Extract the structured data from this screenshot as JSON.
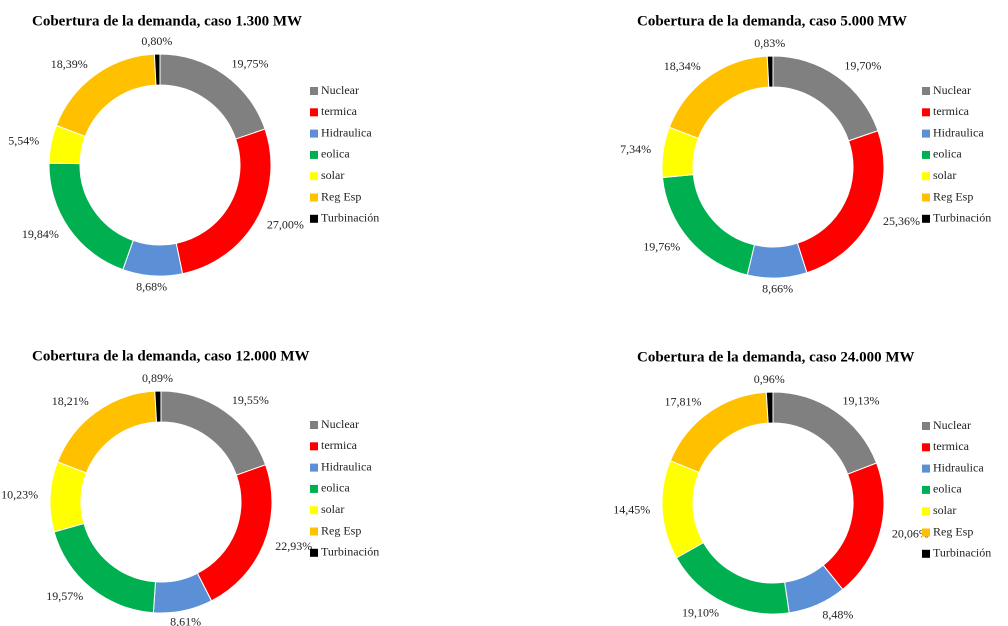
{
  "chart_data": [
    {
      "type": "donut",
      "title": "Cobertura de la demanda, caso 1.300 MW",
      "categories": [
        "Nuclear",
        "termica",
        "Hidraulica",
        "eolica",
        "solar",
        "Reg Esp",
        "Turbinación"
      ],
      "values": [
        19.75,
        27.0,
        8.68,
        19.84,
        5.54,
        18.39,
        0.8
      ],
      "value_labels": [
        "19,75%",
        "27,00%",
        "8,68%",
        "19,84%",
        "5,54%",
        "18,39%",
        "0,80%"
      ],
      "colors": [
        "#808080",
        "#ff0000",
        "#5b8fd6",
        "#00b050",
        "#ffff00",
        "#ffc000",
        "#000000"
      ]
    },
    {
      "type": "donut",
      "title": "Cobertura de la demanda, caso 5.000 MW",
      "categories": [
        "Nuclear",
        "termica",
        "Hidraulica",
        "eolica",
        "solar",
        "Reg Esp",
        "Turbinación"
      ],
      "values": [
        19.7,
        25.36,
        8.66,
        19.76,
        7.34,
        18.34,
        0.83
      ],
      "value_labels": [
        "19,70%",
        "25,36%",
        "8,66%",
        "19,76%",
        "7,34%",
        "18,34%",
        "0,83%"
      ],
      "colors": [
        "#808080",
        "#ff0000",
        "#5b8fd6",
        "#00b050",
        "#ffff00",
        "#ffc000",
        "#000000"
      ]
    },
    {
      "type": "donut",
      "title": "Cobertura de la demanda, caso 12.000 MW",
      "categories": [
        "Nuclear",
        "termica",
        "Hidraulica",
        "eolica",
        "solar",
        "Reg Esp",
        "Turbinación"
      ],
      "values": [
        19.55,
        22.93,
        8.61,
        19.57,
        10.23,
        18.21,
        0.89
      ],
      "value_labels": [
        "19,55%",
        "22,93%",
        "8,61%",
        "19,57%",
        "10,23%",
        "18,21%",
        "0,89%"
      ],
      "colors": [
        "#808080",
        "#ff0000",
        "#5b8fd6",
        "#00b050",
        "#ffff00",
        "#ffc000",
        "#000000"
      ]
    },
    {
      "type": "donut",
      "title": "Cobertura de la demanda, caso 24.000 MW",
      "categories": [
        "Nuclear",
        "termica",
        "Hidraulica",
        "eolica",
        "solar",
        "Reg Esp",
        "Turbinación"
      ],
      "values": [
        19.13,
        20.06,
        8.48,
        19.1,
        14.45,
        17.81,
        0.96
      ],
      "value_labels": [
        "19,13%",
        "20,06%",
        "8,48%",
        "19,10%",
        "14,45%",
        "17,81%",
        "0,96%"
      ],
      "colors": [
        "#808080",
        "#ff0000",
        "#5b8fd6",
        "#00b050",
        "#ffff00",
        "#ffc000",
        "#000000"
      ]
    }
  ]
}
